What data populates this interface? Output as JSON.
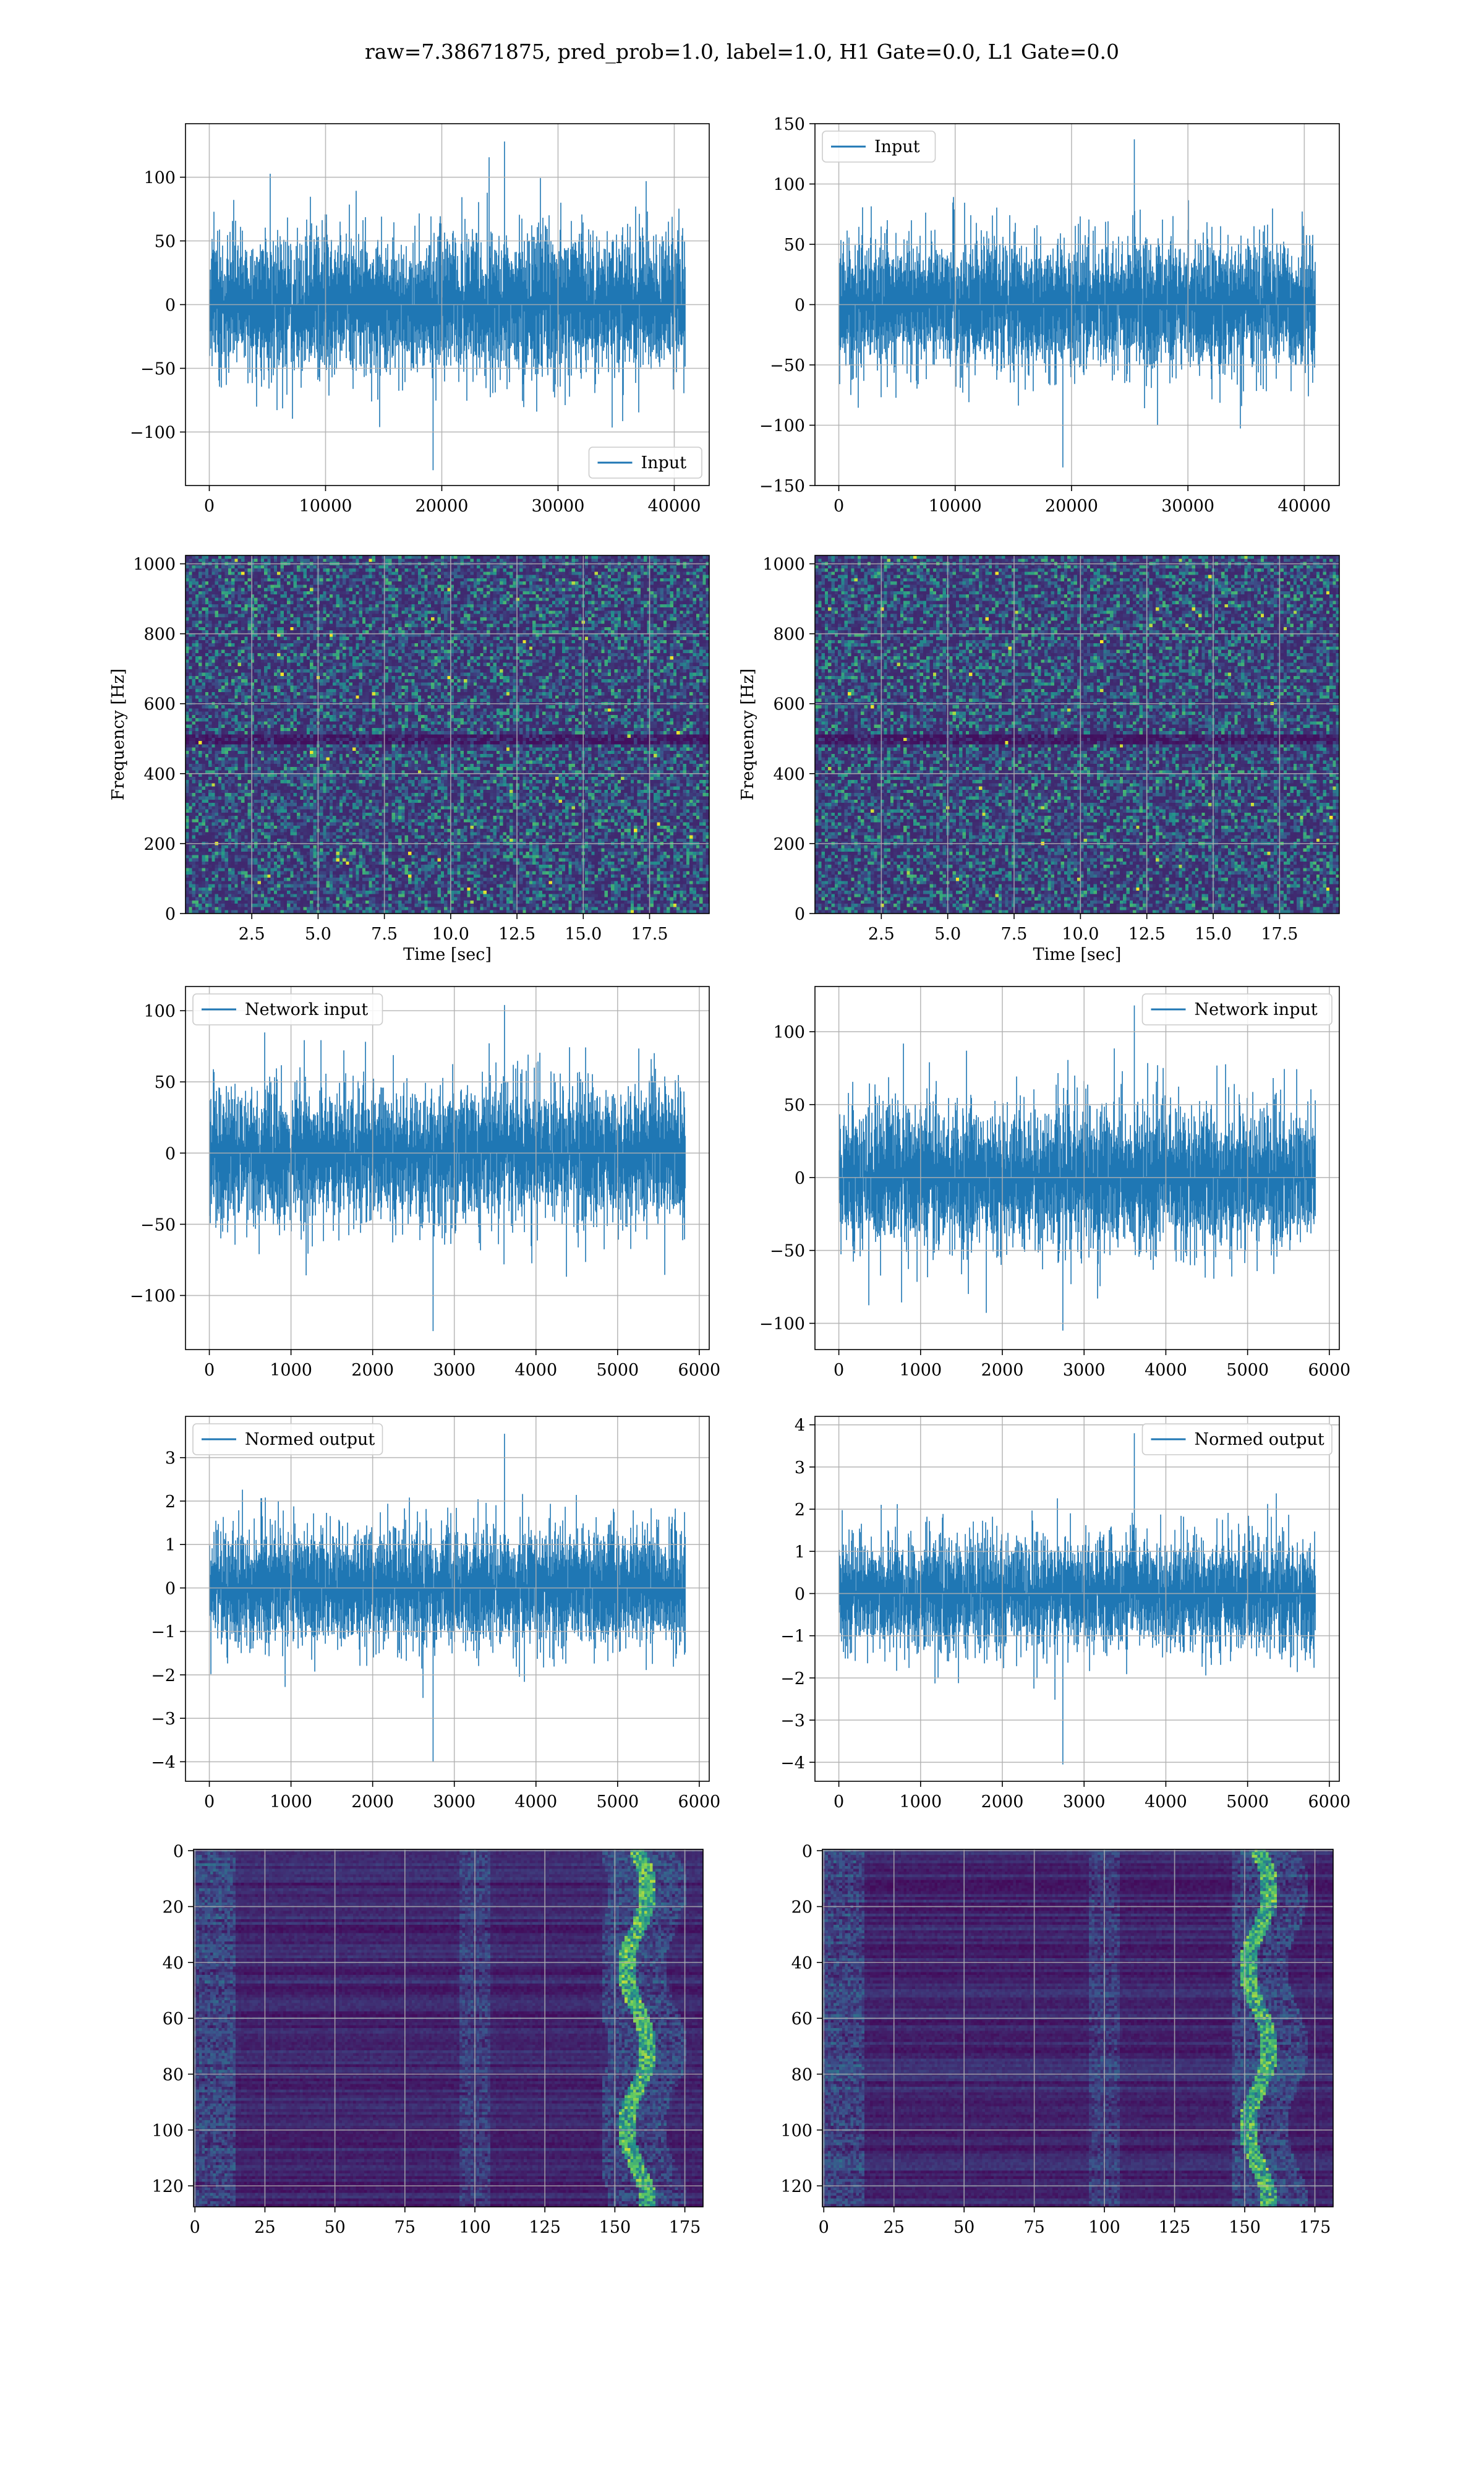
{
  "figure_title": "raw=7.38671875, pred_prob=1.0, label=1.0, H1 Gate=0.0, L1 Gate=0.0",
  "colors": {
    "line": "#1f77b4",
    "grid": "#b0b0b0",
    "viridis_dark": "#440154",
    "viridis_mid": "#21918c",
    "viridis_bright": "#fde725"
  },
  "chart_data": [
    {
      "id": "input-h1",
      "type": "line",
      "title": "",
      "xlabel": "",
      "ylabel": "",
      "legend": "Input",
      "legend_loc": "lower-right",
      "x_range": [
        0,
        40960
      ],
      "y_range": [
        -130,
        128
      ],
      "xlim": [
        -2048,
        43008
      ],
      "ylim": [
        -142,
        142
      ],
      "x_ticks": [
        0,
        10000,
        20000,
        30000,
        40000
      ],
      "x_tick_labels": [
        "0",
        "10000",
        "20000",
        "30000",
        "40000"
      ],
      "y_ticks": [
        -100,
        -50,
        0,
        50,
        100
      ],
      "y_tick_labels": [
        "−100",
        "−50",
        "0",
        "50",
        "100"
      ],
      "typical_amplitude": 45,
      "grid": true
    },
    {
      "id": "input-l1",
      "type": "line",
      "title": "",
      "xlabel": "",
      "ylabel": "",
      "legend": "Input",
      "legend_loc": "upper-left",
      "x_range": [
        0,
        40960
      ],
      "y_range": [
        -135,
        137
      ],
      "xlim": [
        -2048,
        43008
      ],
      "ylim": [
        -150,
        150
      ],
      "x_ticks": [
        0,
        10000,
        20000,
        30000,
        40000
      ],
      "x_tick_labels": [
        "0",
        "10000",
        "20000",
        "30000",
        "40000"
      ],
      "y_ticks": [
        -150,
        -100,
        -50,
        0,
        50,
        100,
        150
      ],
      "y_tick_labels": [
        "−150",
        "−100",
        "−50",
        "0",
        "50",
        "100",
        "150"
      ],
      "typical_amplitude": 45,
      "grid": true
    },
    {
      "id": "spectrogram-h1",
      "type": "heatmap",
      "title": "",
      "xlabel": "Time [sec]",
      "ylabel": "Frequency [Hz]",
      "xlim": [
        0,
        19.75
      ],
      "ylim": [
        0,
        1024
      ],
      "x_ticks": [
        2.5,
        5.0,
        7.5,
        10.0,
        12.5,
        15.0,
        17.5
      ],
      "x_tick_labels": [
        "2.5",
        "5.0",
        "7.5",
        "10.0",
        "12.5",
        "15.0",
        "17.5"
      ],
      "y_ticks": [
        0,
        200,
        400,
        600,
        800,
        1000
      ],
      "y_tick_labels": [
        "0",
        "200",
        "400",
        "600",
        "800",
        "1000"
      ],
      "colormap": "viridis",
      "dark_band_hz": 500,
      "grid": true
    },
    {
      "id": "spectrogram-l1",
      "type": "heatmap",
      "title": "",
      "xlabel": "Time [sec]",
      "ylabel": "Frequency [Hz]",
      "xlim": [
        0,
        19.75
      ],
      "ylim": [
        0,
        1024
      ],
      "x_ticks": [
        2.5,
        5.0,
        7.5,
        10.0,
        12.5,
        15.0,
        17.5
      ],
      "x_tick_labels": [
        "2.5",
        "5.0",
        "7.5",
        "10.0",
        "12.5",
        "15.0",
        "17.5"
      ],
      "y_ticks": [
        0,
        200,
        400,
        600,
        800,
        1000
      ],
      "y_tick_labels": [
        "0",
        "200",
        "400",
        "600",
        "800",
        "1000"
      ],
      "colormap": "viridis",
      "dark_band_hz": 500,
      "grid": true
    },
    {
      "id": "network-input-h1",
      "type": "line",
      "title": "",
      "xlabel": "",
      "ylabel": "",
      "legend": "Network input",
      "legend_loc": "upper-left",
      "x_range": [
        0,
        5830
      ],
      "y_range": [
        -125,
        104
      ],
      "xlim": [
        -292,
        6122
      ],
      "ylim": [
        -138,
        117
      ],
      "x_ticks": [
        0,
        1000,
        2000,
        3000,
        4000,
        5000,
        6000
      ],
      "x_tick_labels": [
        "0",
        "1000",
        "2000",
        "3000",
        "4000",
        "5000",
        "6000"
      ],
      "y_ticks": [
        -100,
        -50,
        0,
        50,
        100
      ],
      "y_tick_labels": [
        "−100",
        "−50",
        "0",
        "50",
        "100"
      ],
      "typical_amplitude": 40,
      "grid": true
    },
    {
      "id": "network-input-l1",
      "type": "line",
      "title": "",
      "xlabel": "",
      "ylabel": "",
      "legend": "Network input",
      "legend_loc": "upper-right",
      "x_range": [
        0,
        5830
      ],
      "y_range": [
        -105,
        118
      ],
      "xlim": [
        -292,
        6122
      ],
      "ylim": [
        -118,
        131
      ],
      "x_ticks": [
        0,
        1000,
        2000,
        3000,
        4000,
        5000,
        6000
      ],
      "x_tick_labels": [
        "0",
        "1000",
        "2000",
        "3000",
        "4000",
        "5000",
        "6000"
      ],
      "y_ticks": [
        -100,
        -50,
        0,
        50,
        100
      ],
      "y_tick_labels": [
        "−100",
        "−50",
        "0",
        "50",
        "100"
      ],
      "typical_amplitude": 40,
      "grid": true
    },
    {
      "id": "normed-output-h1",
      "type": "line",
      "title": "",
      "xlabel": "",
      "ylabel": "",
      "legend": "Normed output",
      "legend_loc": "upper-left",
      "x_range": [
        0,
        5830
      ],
      "y_range": [
        -4.0,
        3.55
      ],
      "xlim": [
        -292,
        6122
      ],
      "ylim": [
        -4.45,
        3.95
      ],
      "x_ticks": [
        0,
        1000,
        2000,
        3000,
        4000,
        5000,
        6000
      ],
      "x_tick_labels": [
        "0",
        "1000",
        "2000",
        "3000",
        "4000",
        "5000",
        "6000"
      ],
      "y_ticks": [
        -4,
        -3,
        -2,
        -1,
        0,
        1,
        2,
        3
      ],
      "y_tick_labels": [
        "−4",
        "−3",
        "−2",
        "−1",
        "0",
        "1",
        "2",
        "3"
      ],
      "typical_amplitude": 1.1,
      "grid": true
    },
    {
      "id": "normed-output-l1",
      "type": "line",
      "title": "",
      "xlabel": "",
      "ylabel": "",
      "legend": "Normed output",
      "legend_loc": "upper-right",
      "x_range": [
        0,
        5830
      ],
      "y_range": [
        -4.05,
        3.8
      ],
      "xlim": [
        -292,
        6122
      ],
      "ylim": [
        -4.45,
        4.2
      ],
      "x_ticks": [
        0,
        1000,
        2000,
        3000,
        4000,
        5000,
        6000
      ],
      "x_tick_labels": [
        "0",
        "1000",
        "2000",
        "3000",
        "4000",
        "5000",
        "6000"
      ],
      "y_ticks": [
        -4,
        -3,
        -2,
        -1,
        0,
        1,
        2,
        3,
        4
      ],
      "y_tick_labels": [
        "−4",
        "−3",
        "−2",
        "−1",
        "0",
        "1",
        "2",
        "3",
        "4"
      ],
      "typical_amplitude": 1.1,
      "grid": true
    },
    {
      "id": "feature-map-h1",
      "type": "heatmap",
      "title": "",
      "xlabel": "",
      "ylabel": "",
      "xlim": [
        -0.5,
        181.5
      ],
      "ylim": [
        127.5,
        -0.5
      ],
      "rows": 128,
      "cols": 182,
      "x_ticks": [
        0,
        25,
        50,
        75,
        100,
        125,
        150,
        175
      ],
      "x_tick_labels": [
        "0",
        "25",
        "50",
        "75",
        "100",
        "125",
        "150",
        "175"
      ],
      "y_ticks": [
        0,
        20,
        40,
        60,
        80,
        100,
        120
      ],
      "y_tick_labels": [
        "0",
        "20",
        "40",
        "60",
        "80",
        "100",
        "120"
      ],
      "colormap": "viridis",
      "bright_column": 158,
      "grid": true
    },
    {
      "id": "feature-map-l1",
      "type": "heatmap",
      "title": "",
      "xlabel": "",
      "ylabel": "",
      "xlim": [
        -0.5,
        181.5
      ],
      "ylim": [
        127.5,
        -0.5
      ],
      "rows": 128,
      "cols": 182,
      "x_ticks": [
        0,
        25,
        50,
        75,
        100,
        125,
        150,
        175
      ],
      "x_tick_labels": [
        "0",
        "25",
        "50",
        "75",
        "100",
        "125",
        "150",
        "175"
      ],
      "y_ticks": [
        0,
        20,
        40,
        60,
        80,
        100,
        120
      ],
      "y_tick_labels": [
        "0",
        "20",
        "40",
        "60",
        "80",
        "100",
        "120"
      ],
      "colormap": "viridis",
      "bright_column": 155,
      "grid": true
    }
  ]
}
